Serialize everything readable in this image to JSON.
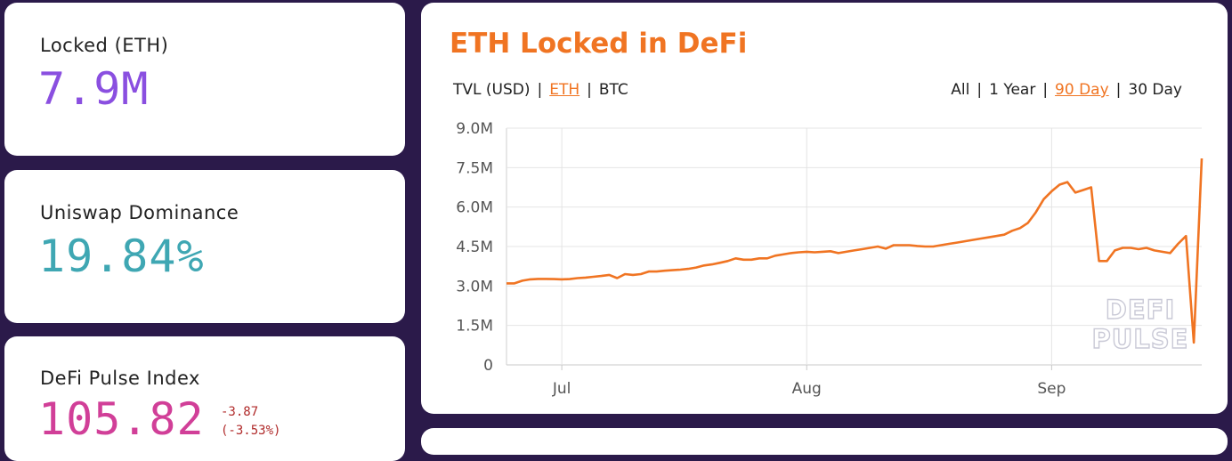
{
  "stats": {
    "locked": {
      "label": "Locked (ETH)",
      "value": "7.9M",
      "color": "#8a4fe0"
    },
    "uniswap": {
      "label": "Uniswap Dominance",
      "value": "19.84%",
      "color": "#3fa7b3"
    },
    "dpi": {
      "label": "DeFi Pulse Index",
      "value": "105.82",
      "change": "-3.87",
      "change_pct": "(-3.53%)",
      "color": "#d13f98"
    }
  },
  "chart_panel": {
    "title": "ETH Locked in DeFi",
    "currency_options": [
      "TVL (USD)",
      "ETH",
      "BTC"
    ],
    "currency_selected": "ETH",
    "range_options": [
      "All",
      "1 Year",
      "90 Day",
      "30 Day"
    ],
    "range_selected": "90 Day",
    "watermark_line1": "DEFI",
    "watermark_line2": "PULSE",
    "accent_color": "#f07422"
  },
  "chart_data": {
    "type": "line",
    "y_tick_labels": [
      "0",
      "1.5M",
      "3.0M",
      "4.5M",
      "6.0M",
      "7.5M",
      "9.0M"
    ],
    "y_ticks": [
      0,
      1.5,
      3.0,
      4.5,
      6.0,
      7.5,
      9.0
    ],
    "ylim": [
      0,
      9.0
    ],
    "x_tick_labels": [
      "Jul",
      "Aug",
      "Sep"
    ],
    "x_ticks": [
      "2020-07-01",
      "2020-08-01",
      "2020-09-01"
    ],
    "xlim": [
      "2020-06-24",
      "2020-09-20"
    ],
    "grid": true,
    "series": [
      {
        "color": "#f07422",
        "x": [
          "2020-06-24",
          "2020-06-25",
          "2020-06-26",
          "2020-06-27",
          "2020-06-28",
          "2020-06-29",
          "2020-06-30",
          "2020-07-01",
          "2020-07-02",
          "2020-07-03",
          "2020-07-04",
          "2020-07-05",
          "2020-07-06",
          "2020-07-07",
          "2020-07-08",
          "2020-07-09",
          "2020-07-10",
          "2020-07-11",
          "2020-07-12",
          "2020-07-13",
          "2020-07-14",
          "2020-07-15",
          "2020-07-16",
          "2020-07-17",
          "2020-07-18",
          "2020-07-19",
          "2020-07-20",
          "2020-07-21",
          "2020-07-22",
          "2020-07-23",
          "2020-07-24",
          "2020-07-25",
          "2020-07-26",
          "2020-07-27",
          "2020-07-28",
          "2020-07-29",
          "2020-07-30",
          "2020-07-31",
          "2020-08-01",
          "2020-08-02",
          "2020-08-03",
          "2020-08-04",
          "2020-08-05",
          "2020-08-06",
          "2020-08-07",
          "2020-08-08",
          "2020-08-09",
          "2020-08-10",
          "2020-08-11",
          "2020-08-12",
          "2020-08-13",
          "2020-08-14",
          "2020-08-15",
          "2020-08-16",
          "2020-08-17",
          "2020-08-18",
          "2020-08-19",
          "2020-08-20",
          "2020-08-21",
          "2020-08-22",
          "2020-08-23",
          "2020-08-24",
          "2020-08-25",
          "2020-08-26",
          "2020-08-27",
          "2020-08-28",
          "2020-08-29",
          "2020-08-30",
          "2020-08-31",
          "2020-09-01",
          "2020-09-02",
          "2020-09-03",
          "2020-09-04",
          "2020-09-05",
          "2020-09-06",
          "2020-09-07",
          "2020-09-08",
          "2020-09-09",
          "2020-09-10",
          "2020-09-11",
          "2020-09-12",
          "2020-09-13",
          "2020-09-14",
          "2020-09-15",
          "2020-09-16",
          "2020-09-17",
          "2020-09-18",
          "2020-09-19",
          "2020-09-20"
        ],
        "values": [
          3.1,
          3.1,
          3.2,
          3.25,
          3.27,
          3.27,
          3.26,
          3.25,
          3.26,
          3.3,
          3.32,
          3.35,
          3.38,
          3.42,
          3.3,
          3.45,
          3.42,
          3.45,
          3.55,
          3.55,
          3.58,
          3.6,
          3.62,
          3.65,
          3.7,
          3.78,
          3.82,
          3.88,
          3.95,
          4.05,
          4.0,
          4.0,
          4.05,
          4.05,
          4.15,
          4.2,
          4.25,
          4.28,
          4.3,
          4.28,
          4.3,
          4.32,
          4.25,
          4.3,
          4.35,
          4.4,
          4.45,
          4.5,
          4.42,
          4.55,
          4.55,
          4.55,
          4.52,
          4.5,
          4.5,
          4.55,
          4.6,
          4.65,
          4.7,
          4.75,
          4.8,
          4.85,
          4.9,
          4.95,
          5.1,
          5.2,
          5.4,
          5.8,
          6.3,
          6.6,
          6.85,
          6.95,
          6.55,
          6.65,
          6.75,
          3.95,
          3.95,
          4.35,
          4.45,
          4.45,
          4.4,
          4.45,
          4.35,
          4.3,
          4.25,
          4.6,
          4.9,
          0.85,
          7.85
        ]
      }
    ]
  }
}
